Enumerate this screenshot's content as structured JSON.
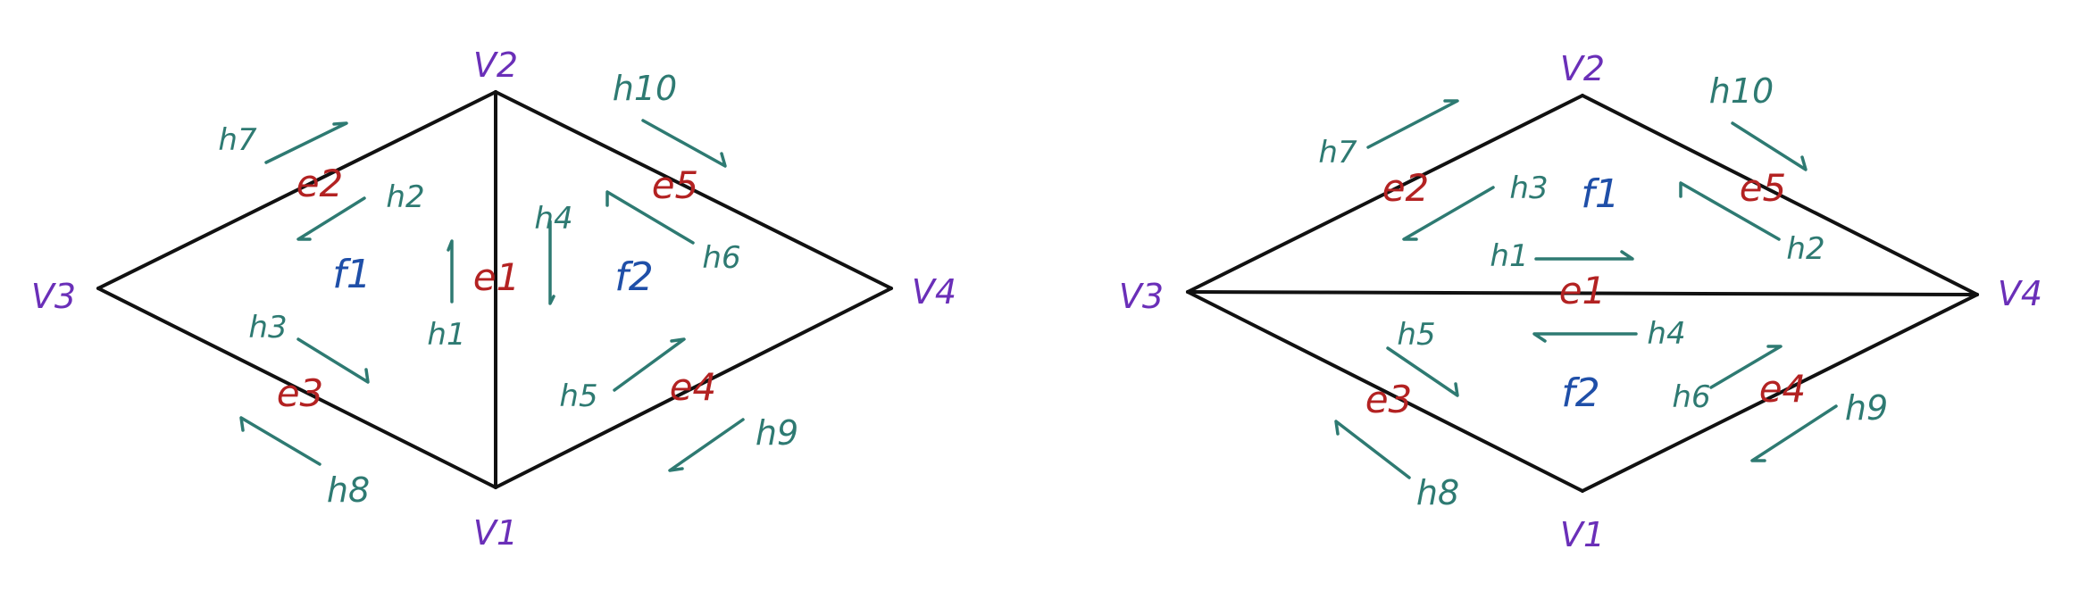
{
  "colors": {
    "vertex": "#6a2fb8",
    "edge": "#b32222",
    "face": "#1f4fa8",
    "halfedge": "#2e7a72"
  },
  "left": {
    "vertices": {
      "v1": "V1",
      "v2": "V2",
      "v3": "V3",
      "v4": "V4"
    },
    "edges": {
      "e1": "e1",
      "e2": "e2",
      "e3": "e3",
      "e4": "e4",
      "e5": "e5"
    },
    "faces": {
      "f1": "f1",
      "f2": "f2"
    },
    "halfedges": {
      "h1": "h1",
      "h2": "h2",
      "h3": "h3",
      "h4": "h4",
      "h5": "h5",
      "h6": "h6",
      "h7": "h7",
      "h8": "h8",
      "h9": "h9",
      "h10": "h10"
    }
  },
  "right": {
    "vertices": {
      "v1": "V1",
      "v2": "V2",
      "v3": "V3",
      "v4": "V4"
    },
    "edges": {
      "e1": "e1",
      "e2": "e2",
      "e3": "e3",
      "e4": "e4",
      "e5": "e5"
    },
    "faces": {
      "f1": "f1",
      "f2": "f2"
    },
    "halfedges": {
      "h1": "h1",
      "h2": "h2",
      "h3": "h3",
      "h4": "h4",
      "h5": "h5",
      "h6": "h6",
      "h7": "h7",
      "h8": "h8",
      "h9": "h9",
      "h10": "h10"
    }
  }
}
